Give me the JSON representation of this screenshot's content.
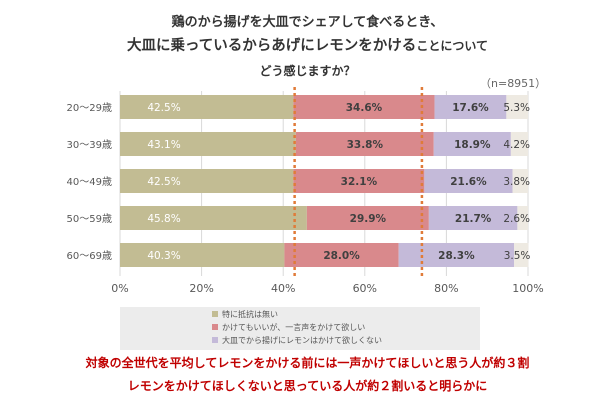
{
  "title": {
    "line1": "鶏のから揚げを大皿でシェアして食べるとき、",
    "line2_main": "大皿に乗っているからあげにレモンをかける",
    "line2_tail": "ことについて",
    "line3": "どう感じますか？"
  },
  "sample_size": "（n=8951）",
  "legend": [
    {
      "label": "特に抵抗は無い",
      "color": "#c2bc93"
    },
    {
      "label": "かけてもいいが、一言声をかけて欲しい",
      "color": "#d9898c"
    },
    {
      "label": "大皿でから揚げにレモンはかけて欲しくない",
      "color": "#c4bad9"
    }
  ],
  "notes": {
    "line1": "対象の全世代を平均してレモンをかける前には一声かけてほしいと思う人が約３割",
    "line2": "レモンをかけてほしくないと思っている人が約２割いると明らかに"
  },
  "chart_data": {
    "type": "bar",
    "orientation": "horizontal",
    "stacked": true,
    "categories": [
      "20～29歳",
      "30～39歳",
      "40～49歳",
      "50～59歳",
      "60～69歳"
    ],
    "series": [
      {
        "name": "特に抵抗は無い",
        "color": "#c2bc93",
        "labels": [
          "42.5%",
          "43.1%",
          "42.5%",
          "45.8%",
          "40.3%"
        ],
        "values": [
          42.5,
          43.1,
          42.5,
          45.8,
          40.3
        ]
      },
      {
        "name": "かけてもいいが、一言声をかけて欲しい",
        "color": "#d9898c",
        "labels": [
          "34.6%",
          "33.8%",
          "32.1%",
          "29.9%",
          "28.0%"
        ],
        "values": [
          34.6,
          33.8,
          32.1,
          29.9,
          28.0
        ]
      },
      {
        "name": "大皿でから揚げにレモンはかけて欲しくない",
        "color": "#c4bad9",
        "labels": [
          "17.6%",
          "18.9%",
          "21.6%",
          "21.7%",
          "28.3%"
        ],
        "values": [
          17.6,
          18.9,
          21.6,
          21.7,
          28.3
        ]
      },
      {
        "color": "#eeeae2",
        "labels": [
          "5.3%",
          "4.2%",
          "3.8%",
          "2.6%",
          "3.5%"
        ],
        "values": [
          5.3,
          4.2,
          3.8,
          2.6,
          3.5
        ]
      }
    ],
    "x_ticks": [
      "0%",
      "20%",
      "40%",
      "60%",
      "80%",
      "100%"
    ],
    "xlim": [
      0,
      100
    ],
    "grid": true,
    "reference_lines": [
      42.8,
      74.0
    ],
    "reference_line_color": "#e07b39"
  }
}
